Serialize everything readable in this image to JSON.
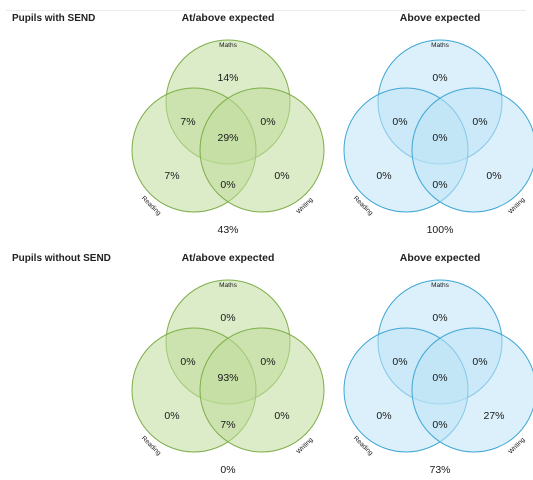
{
  "theme": {
    "green": {
      "fill": "#bfdc9a",
      "fill_opacity": 0.55,
      "stroke": "#7eae48"
    },
    "blue": {
      "fill": "#bde4f5",
      "fill_opacity": 0.55,
      "stroke": "#3fa6d6"
    }
  },
  "sections": [
    {
      "label": "Pupils with SEND",
      "panels": [
        {
          "title": "At/above expected",
          "color": "green",
          "circle_labels": {
            "top": "Maths",
            "left": "Reading",
            "right": "Writing"
          },
          "regions": {
            "maths_only": "14%",
            "maths_reading": "7%",
            "maths_writing": "0%",
            "all_three": "29%",
            "reading_only": "7%",
            "writing_only": "0%",
            "reading_writing": "0%",
            "none": "43%"
          }
        },
        {
          "title": "Above expected",
          "color": "blue",
          "circle_labels": {
            "top": "Maths",
            "left": "Reading",
            "right": "Writing"
          },
          "regions": {
            "maths_only": "0%",
            "maths_reading": "0%",
            "maths_writing": "0%",
            "all_three": "0%",
            "reading_only": "0%",
            "writing_only": "0%",
            "reading_writing": "0%",
            "none": "100%"
          }
        }
      ]
    },
    {
      "label": "Pupils without SEND",
      "panels": [
        {
          "title": "At/above expected",
          "color": "green",
          "circle_labels": {
            "top": "Maths",
            "left": "Reading",
            "right": "Writing"
          },
          "regions": {
            "maths_only": "0%",
            "maths_reading": "0%",
            "maths_writing": "0%",
            "all_three": "93%",
            "reading_only": "0%",
            "writing_only": "0%",
            "reading_writing": "7%",
            "none": "0%"
          }
        },
        {
          "title": "Above expected",
          "color": "blue",
          "circle_labels": {
            "top": "Maths",
            "left": "Reading",
            "right": "Writing"
          },
          "regions": {
            "maths_only": "0%",
            "maths_reading": "0%",
            "maths_writing": "0%",
            "all_three": "0%",
            "reading_only": "0%",
            "writing_only": "27%",
            "reading_writing": "0%",
            "none": "73%"
          }
        }
      ]
    }
  ],
  "chart_data": [
    {
      "type": "venn",
      "group": "Pupils with SEND",
      "title": "At/above expected",
      "sets": [
        "Maths",
        "Reading",
        "Writing"
      ],
      "values": {
        "Maths only": 14,
        "Maths & Reading": 7,
        "Maths & Writing": 0,
        "All three": 29,
        "Reading only": 7,
        "Writing only": 0,
        "Reading & Writing": 0,
        "None": 43
      }
    },
    {
      "type": "venn",
      "group": "Pupils with SEND",
      "title": "Above expected",
      "sets": [
        "Maths",
        "Reading",
        "Writing"
      ],
      "values": {
        "Maths only": 0,
        "Maths & Reading": 0,
        "Maths & Writing": 0,
        "All three": 0,
        "Reading only": 0,
        "Writing only": 0,
        "Reading & Writing": 0,
        "None": 100
      }
    },
    {
      "type": "venn",
      "group": "Pupils without SEND",
      "title": "At/above expected",
      "sets": [
        "Maths",
        "Reading",
        "Writing"
      ],
      "values": {
        "Maths only": 0,
        "Maths & Reading": 0,
        "Maths & Writing": 0,
        "All three": 93,
        "Reading only": 0,
        "Writing only": 0,
        "Reading & Writing": 7,
        "None": 0
      }
    },
    {
      "type": "venn",
      "group": "Pupils without SEND",
      "title": "Above expected",
      "sets": [
        "Maths",
        "Reading",
        "Writing"
      ],
      "values": {
        "Maths only": 0,
        "Maths & Reading": 0,
        "Maths & Writing": 0,
        "All three": 0,
        "Reading only": 0,
        "Writing only": 27,
        "Reading & Writing": 0,
        "None": 73
      }
    }
  ]
}
